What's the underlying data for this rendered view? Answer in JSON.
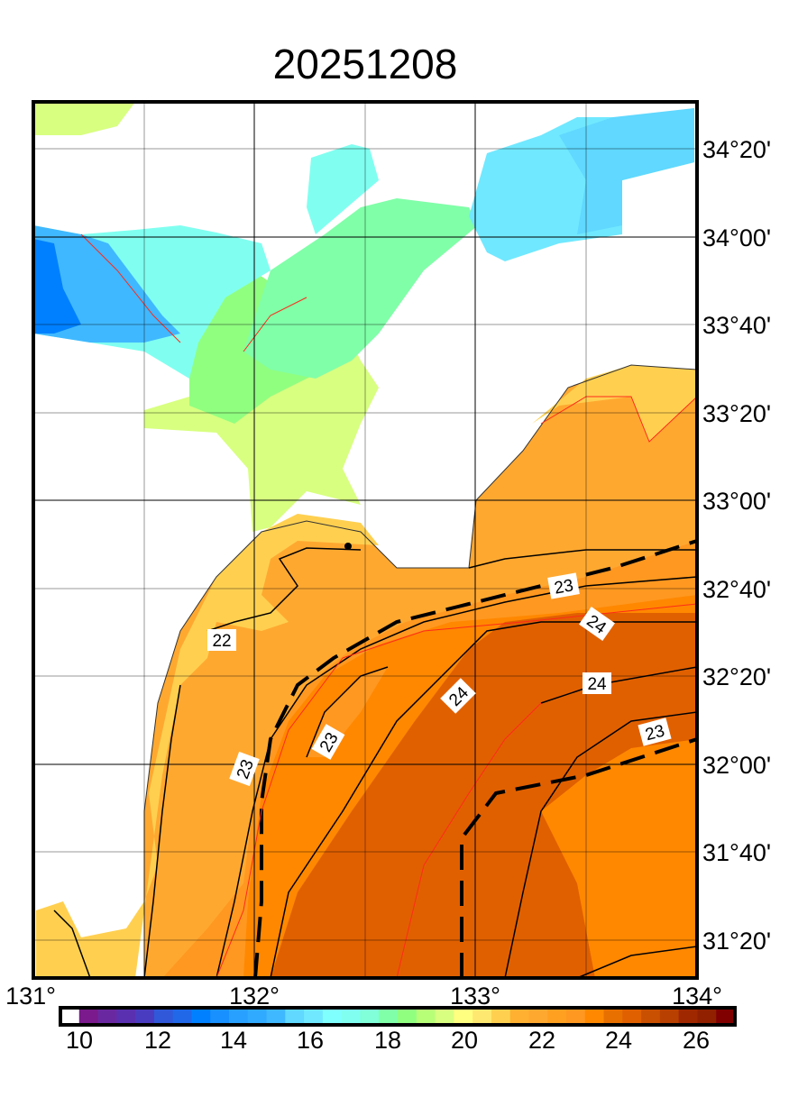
{
  "title": "20251208",
  "map": {
    "variable_colors": {
      "land": "#ffffff",
      "coast": "#333333",
      "contour_major": "#000000",
      "contour_minor": "#ff2a1a",
      "grid": "#000000"
    },
    "lat_labels": [
      "34°20'",
      "34°00'",
      "33°40'",
      "33°20'",
      "33°00'",
      "32°40'",
      "32°20'",
      "32°00'",
      "31°40'",
      "31°20'"
    ],
    "lon_labels": [
      "131°",
      "132°",
      "133°",
      "134°"
    ],
    "contour_labels": [
      "22",
      "23",
      "23",
      "23",
      "24",
      "24",
      "24",
      "23"
    ]
  },
  "colorbar": {
    "tick_labels": [
      "10",
      "12",
      "14",
      "16",
      "18",
      "20",
      "22",
      "24",
      "26"
    ],
    "min": 10,
    "max": 27,
    "step": 0.5,
    "colors": [
      "#ffffff",
      "#7a1a8c",
      "#6a28a0",
      "#5a30b0",
      "#4a3cc0",
      "#3058d8",
      "#2068e8",
      "#0080ff",
      "#1890ff",
      "#28a0ff",
      "#30aaff",
      "#40b8ff",
      "#60d8ff",
      "#70e8ff",
      "#80ffff",
      "#80fff0",
      "#80ffd8",
      "#80ffa8",
      "#90ff80",
      "#b8ff78",
      "#d8ff80",
      "#ffff80",
      "#ffe870",
      "#ffd050",
      "#ffb030",
      "#ffa830",
      "#ffa020",
      "#ff9820",
      "#ff8800",
      "#e87000",
      "#e06000",
      "#c85000",
      "#b84000",
      "#a02800",
      "#902000",
      "#800000"
    ]
  }
}
